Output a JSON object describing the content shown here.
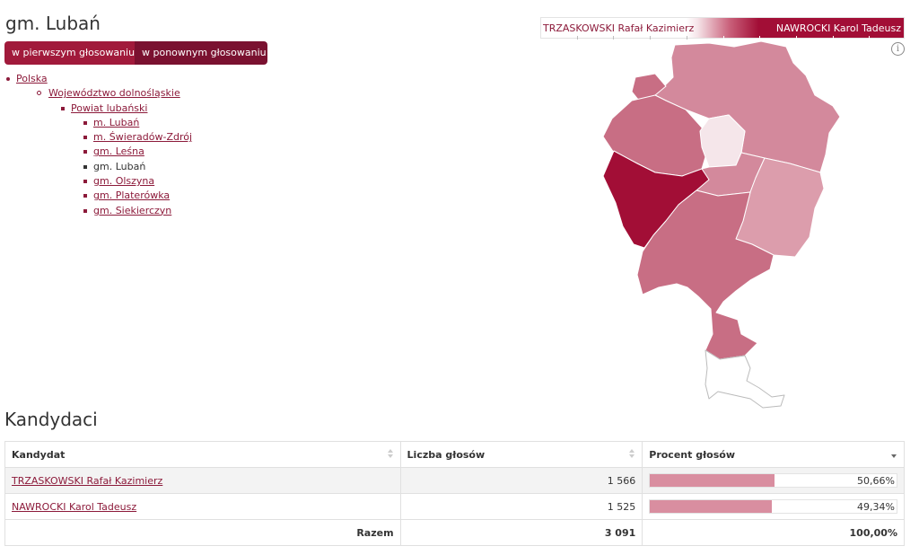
{
  "page": {
    "title": "gm. Lubań",
    "round_tabs": [
      "w pierwszym głosowaniu",
      "w ponownym głosowaniu"
    ]
  },
  "breadcrumb": {
    "country": "Polska",
    "voivodeship": "Województwo dolnośląskie",
    "county": "Powiat lubański",
    "municipalities": [
      "m. Lubań",
      "m. Świeradów-Zdrój",
      "gm. Leśna",
      "gm. Lubań",
      "gm. Olszyna",
      "gm. Platerówka",
      "gm. Siekierczyn"
    ],
    "current": "gm. Lubań"
  },
  "legend": {
    "left_label": "TRZASKOWSKI Rafał Kazimierz",
    "right_label": "NAWROCKI Karol Tadeusz",
    "colors": {
      "left": "#ffffff",
      "right": "#a20e36"
    }
  },
  "info_icon": {
    "icon": "info-icon",
    "glyph": "i"
  },
  "map": {
    "icon": "choropleth-map",
    "colors": {
      "dark": "#a20e36",
      "medium": "#c86e84",
      "light": "#d3899c",
      "lighter": "#dc9dac",
      "pale": "#f5e6ea",
      "outline": "#bbbbbb"
    }
  },
  "candidates": {
    "title": "Kandydaci",
    "columns": [
      "Kandydat",
      "Liczba głosów",
      "Procent głosów"
    ],
    "rows": [
      {
        "name": "TRZASKOWSKI Rafał Kazimierz",
        "votes": "1 566",
        "percent_label": "50,66%",
        "percent": 50.66
      },
      {
        "name": "NAWROCKI Karol Tadeusz",
        "votes": "1 525",
        "percent_label": "49,34%",
        "percent": 49.34
      }
    ],
    "total": {
      "label": "Razem",
      "votes": "3 091",
      "percent_label": "100,00%"
    }
  }
}
